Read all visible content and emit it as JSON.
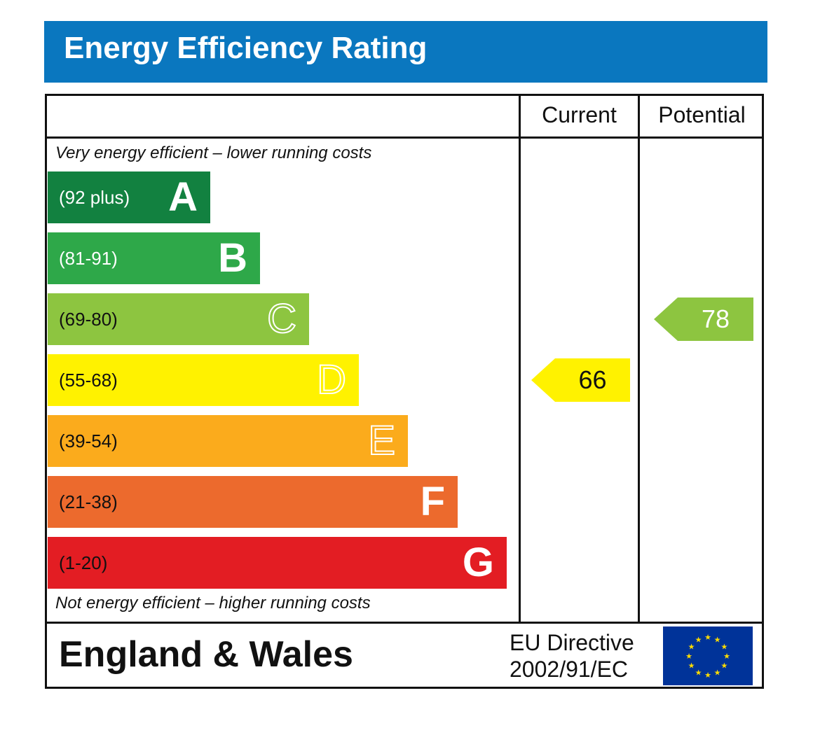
{
  "header": {
    "title": "Energy Efficiency Rating"
  },
  "table": {
    "col_current": "Current",
    "col_potential": "Potential",
    "top_note": "Very energy efficient – lower running costs",
    "bottom_note": "Not energy efficient – higher running costs"
  },
  "chart_data": {
    "type": "bar",
    "bands": [
      {
        "letter": "A",
        "range": "(92 plus)",
        "color": "#128140",
        "text_color": "#ffffff",
        "letter_style": "solid"
      },
      {
        "letter": "B",
        "range": "(81-91)",
        "color": "#2ea849",
        "text_color": "#ffffff",
        "letter_style": "solid"
      },
      {
        "letter": "C",
        "range": "(69-80)",
        "color": "#8dc540",
        "text_color": "#111111",
        "letter_style": "outline"
      },
      {
        "letter": "D",
        "range": "(55-68)",
        "color": "#fff200",
        "text_color": "#111111",
        "letter_style": "outline"
      },
      {
        "letter": "E",
        "range": "(39-54)",
        "color": "#fbab1c",
        "text_color": "#111111",
        "letter_style": "outline"
      },
      {
        "letter": "F",
        "range": "(21-38)",
        "color": "#ec6a2d",
        "text_color": "#111111",
        "letter_style": "solid"
      },
      {
        "letter": "G",
        "range": "(1-20)",
        "color": "#e31d23",
        "text_color": "#111111",
        "letter_style": "solid"
      }
    ],
    "current": {
      "value": "66",
      "band": "D",
      "color": "#fff200",
      "text_color": "#111111"
    },
    "potential": {
      "value": "78",
      "band": "C",
      "color": "#8dc540",
      "text_color": "#ffffff"
    }
  },
  "footer": {
    "region": "England & Wales",
    "directive_line1": "EU Directive",
    "directive_line2": "2002/91/EC",
    "flag_icon": "eu-flag-icon"
  },
  "colors": {
    "title_bar": "#0a77bf",
    "flag_blue": "#003399",
    "flag_star": "#ffdd00"
  }
}
